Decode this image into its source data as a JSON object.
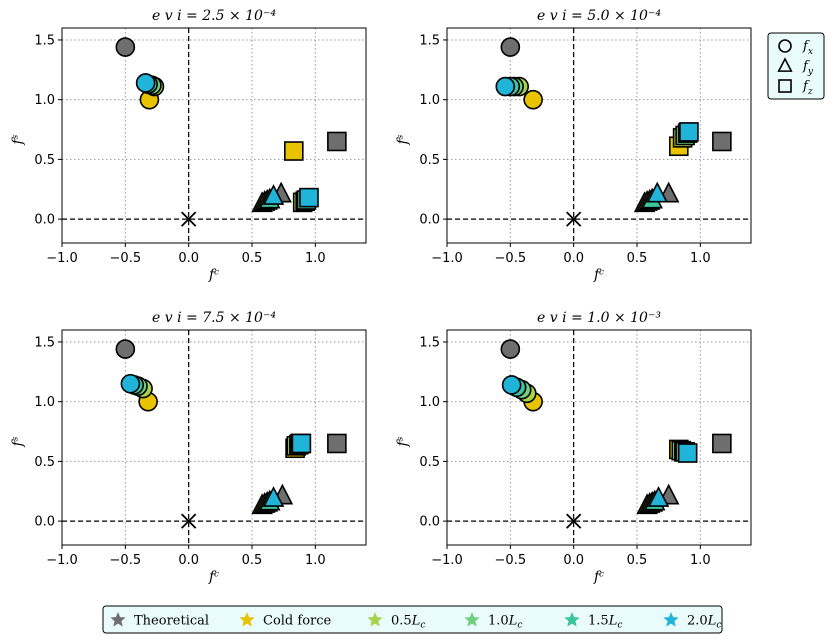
{
  "chart_data": [
    {
      "type": "scatter",
      "title": "e v i = 2.5 × 10⁻⁴",
      "xlabel": "fᶜ",
      "ylabel": "fˢ",
      "xlim": [
        -1.0,
        1.4
      ],
      "ylim": [
        -0.2,
        1.6
      ],
      "xticks": [
        "−1.0",
        "−0.5",
        "0.0",
        "0.5",
        "1.0"
      ],
      "yticks": [
        "0.0",
        "0.5",
        "1.0",
        "1.5"
      ],
      "grid": true,
      "series": [
        {
          "name": "Theoretical",
          "color": "#6e6e6e",
          "x": {
            "x": -0.5,
            "y": 1.44
          },
          "y": {
            "x": 0.73,
            "y": 0.21
          },
          "z": {
            "x": 1.17,
            "y": 0.65
          }
        },
        {
          "name": "Cold force",
          "color": "#e8c400",
          "x": {
            "x": -0.31,
            "y": 1.0
          },
          "y": {
            "x": 0.58,
            "y": 0.13
          },
          "z": {
            "x": 0.83,
            "y": 0.57
          }
        },
        {
          "name": "0.5L_c",
          "color": "#a8d24a",
          "x": {
            "x": -0.27,
            "y": 1.11
          },
          "y": {
            "x": 0.6,
            "y": 0.14
          },
          "z": {
            "x": 0.9,
            "y": 0.14
          }
        },
        {
          "name": "1.0L_c",
          "color": "#6fcf7f",
          "x": {
            "x": -0.29,
            "y": 1.12
          },
          "y": {
            "x": 0.62,
            "y": 0.15
          },
          "z": {
            "x": 0.92,
            "y": 0.15
          }
        },
        {
          "name": "1.5L_c",
          "color": "#3cc3a0",
          "x": {
            "x": -0.32,
            "y": 1.13
          },
          "y": {
            "x": 0.64,
            "y": 0.16
          },
          "z": {
            "x": 0.93,
            "y": 0.16
          }
        },
        {
          "name": "2.0L_c",
          "color": "#1fb4d8",
          "x": {
            "x": -0.34,
            "y": 1.14
          },
          "y": {
            "x": 0.67,
            "y": 0.19
          },
          "z": {
            "x": 0.95,
            "y": 0.18
          }
        }
      ]
    },
    {
      "type": "scatter",
      "title": "e v i = 5.0 × 10⁻⁴",
      "xlabel": "fᶜ",
      "ylabel": "fˢ",
      "xlim": [
        -1.0,
        1.4
      ],
      "ylim": [
        -0.2,
        1.6
      ],
      "xticks": [
        "−1.0",
        "−0.5",
        "0.0",
        "0.5",
        "1.0"
      ],
      "yticks": [
        "0.0",
        "0.5",
        "1.0",
        "1.5"
      ],
      "grid": true,
      "series": [
        {
          "name": "Theoretical",
          "color": "#6e6e6e",
          "x": {
            "x": -0.5,
            "y": 1.44
          },
          "y": {
            "x": 0.75,
            "y": 0.21
          },
          "z": {
            "x": 1.17,
            "y": 0.65
          }
        },
        {
          "name": "Cold force",
          "color": "#e8c400",
          "x": {
            "x": -0.32,
            "y": 1.0
          },
          "y": {
            "x": 0.56,
            "y": 0.13
          },
          "z": {
            "x": 0.83,
            "y": 0.61
          }
        },
        {
          "name": "0.5L_c",
          "color": "#a8d24a",
          "x": {
            "x": -0.43,
            "y": 1.11
          },
          "y": {
            "x": 0.58,
            "y": 0.14
          },
          "z": {
            "x": 0.86,
            "y": 0.68
          }
        },
        {
          "name": "1.0L_c",
          "color": "#6fcf7f",
          "x": {
            "x": -0.47,
            "y": 1.11
          },
          "y": {
            "x": 0.6,
            "y": 0.15
          },
          "z": {
            "x": 0.88,
            "y": 0.7
          }
        },
        {
          "name": "1.5L_c",
          "color": "#3cc3a0",
          "x": {
            "x": -0.5,
            "y": 1.11
          },
          "y": {
            "x": 0.62,
            "y": 0.16
          },
          "z": {
            "x": 0.9,
            "y": 0.72
          }
        },
        {
          "name": "2.0L_c",
          "color": "#1fb4d8",
          "x": {
            "x": -0.54,
            "y": 1.11
          },
          "y": {
            "x": 0.66,
            "y": 0.21
          },
          "z": {
            "x": 0.91,
            "y": 0.73
          }
        }
      ]
    },
    {
      "type": "scatter",
      "title": "e v i = 7.5 × 10⁻⁴",
      "xlabel": "fᶜ",
      "ylabel": "fˢ",
      "xlim": [
        -1.0,
        1.4
      ],
      "ylim": [
        -0.2,
        1.6
      ],
      "xticks": [
        "−1.0",
        "−0.5",
        "0.0",
        "0.5",
        "1.0"
      ],
      "yticks": [
        "0.0",
        "0.5",
        "1.0",
        "1.5"
      ],
      "grid": true,
      "series": [
        {
          "name": "Theoretical",
          "color": "#6e6e6e",
          "x": {
            "x": -0.5,
            "y": 1.44
          },
          "y": {
            "x": 0.74,
            "y": 0.21
          },
          "z": {
            "x": 1.17,
            "y": 0.65
          }
        },
        {
          "name": "Cold force",
          "color": "#e8c400",
          "x": {
            "x": -0.32,
            "y": 1.0
          },
          "y": {
            "x": 0.58,
            "y": 0.13
          },
          "z": {
            "x": 0.84,
            "y": 0.61
          }
        },
        {
          "name": "0.5L_c",
          "color": "#a8d24a",
          "x": {
            "x": -0.36,
            "y": 1.11
          },
          "y": {
            "x": 0.6,
            "y": 0.14
          },
          "z": {
            "x": 0.85,
            "y": 0.63
          }
        },
        {
          "name": "1.0L_c",
          "color": "#6fcf7f",
          "x": {
            "x": -0.4,
            "y": 1.13
          },
          "y": {
            "x": 0.62,
            "y": 0.15
          },
          "z": {
            "x": 0.87,
            "y": 0.64
          }
        },
        {
          "name": "1.5L_c",
          "color": "#3cc3a0",
          "x": {
            "x": -0.43,
            "y": 1.14
          },
          "y": {
            "x": 0.64,
            "y": 0.16
          },
          "z": {
            "x": 0.88,
            "y": 0.65
          }
        },
        {
          "name": "2.0L_c",
          "color": "#1fb4d8",
          "x": {
            "x": -0.46,
            "y": 1.15
          },
          "y": {
            "x": 0.67,
            "y": 0.19
          },
          "z": {
            "x": 0.89,
            "y": 0.65
          }
        }
      ]
    },
    {
      "type": "scatter",
      "title": "e v i = 1.0 × 10⁻³",
      "xlabel": "fᶜ",
      "ylabel": "fˢ",
      "xlim": [
        -1.0,
        1.4
      ],
      "ylim": [
        -0.2,
        1.6
      ],
      "xticks": [
        "−1.0",
        "−0.5",
        "0.0",
        "0.5",
        "1.0"
      ],
      "yticks": [
        "0.0",
        "0.5",
        "1.0",
        "1.5"
      ],
      "grid": true,
      "series": [
        {
          "name": "Theoretical",
          "color": "#6e6e6e",
          "x": {
            "x": -0.5,
            "y": 1.44
          },
          "y": {
            "x": 0.75,
            "y": 0.21
          },
          "z": {
            "x": 1.17,
            "y": 0.65
          }
        },
        {
          "name": "Cold force",
          "color": "#e8c400",
          "x": {
            "x": -0.32,
            "y": 1.0
          },
          "y": {
            "x": 0.58,
            "y": 0.13
          },
          "z": {
            "x": 0.83,
            "y": 0.6
          }
        },
        {
          "name": "0.5L_c",
          "color": "#a8d24a",
          "x": {
            "x": -0.37,
            "y": 1.07
          },
          "y": {
            "x": 0.6,
            "y": 0.14
          },
          "z": {
            "x": 0.85,
            "y": 0.59
          }
        },
        {
          "name": "1.0L_c",
          "color": "#6fcf7f",
          "x": {
            "x": -0.41,
            "y": 1.1
          },
          "y": {
            "x": 0.62,
            "y": 0.15
          },
          "z": {
            "x": 0.87,
            "y": 0.58
          }
        },
        {
          "name": "1.5L_c",
          "color": "#3cc3a0",
          "x": {
            "x": -0.45,
            "y": 1.12
          },
          "y": {
            "x": 0.64,
            "y": 0.16
          },
          "z": {
            "x": 0.88,
            "y": 0.58
          }
        },
        {
          "name": "2.0L_c",
          "color": "#1fb4d8",
          "x": {
            "x": -0.49,
            "y": 1.14
          },
          "y": {
            "x": 0.67,
            "y": 0.19
          },
          "z": {
            "x": 0.9,
            "y": 0.57
          }
        }
      ]
    }
  ],
  "theoretical_point": {
    "x": 0.0,
    "y": 0.0
  },
  "marker_legend": [
    {
      "shape": "circle",
      "label": "f",
      "sub": "x"
    },
    {
      "shape": "triangle",
      "label": "f",
      "sub": "y"
    },
    {
      "shape": "square",
      "label": "f",
      "sub": "z"
    }
  ],
  "color_legend": [
    {
      "label": "Theoretical",
      "color": "#6e6e6e"
    },
    {
      "label": "Cold force",
      "color": "#e8c400"
    },
    {
      "label": "0.5",
      "italic": "L",
      "sub": "c",
      "color": "#a8d24a"
    },
    {
      "label": "1.0",
      "italic": "L",
      "sub": "c",
      "color": "#6fcf7f"
    },
    {
      "label": "1.5",
      "italic": "L",
      "sub": "c",
      "color": "#3cc3a0"
    },
    {
      "label": "2.0",
      "italic": "L",
      "sub": "c",
      "color": "#1fb4d8"
    }
  ]
}
